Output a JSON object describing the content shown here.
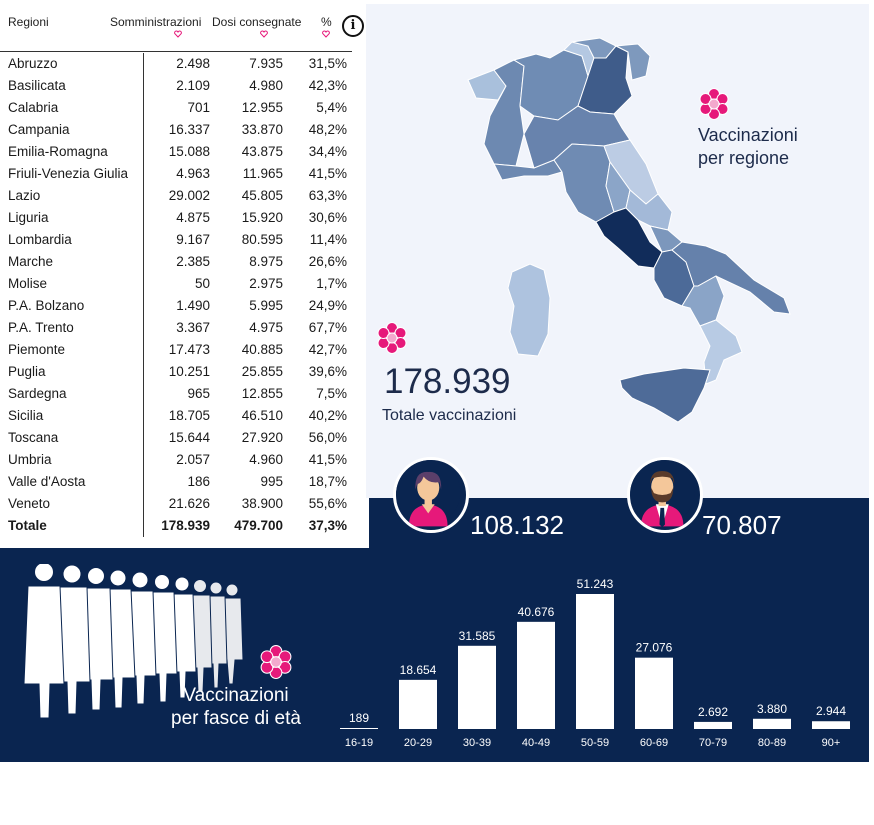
{
  "table": {
    "headers": {
      "region": "Regioni",
      "somm": "Somministrazioni",
      "dosi": "Dosi consegnate",
      "pct": "%"
    },
    "info_icon": "info-icon",
    "sort_icon": "heart-sort-icon",
    "rows": [
      {
        "name": "Abruzzo",
        "somm": "2.498",
        "dosi": "7.935",
        "pct": "31,5%"
      },
      {
        "name": "Basilicata",
        "somm": "2.109",
        "dosi": "4.980",
        "pct": "42,3%"
      },
      {
        "name": "Calabria",
        "somm": "701",
        "dosi": "12.955",
        "pct": "5,4%"
      },
      {
        "name": "Campania",
        "somm": "16.337",
        "dosi": "33.870",
        "pct": "48,2%"
      },
      {
        "name": "Emilia-Romagna",
        "somm": "15.088",
        "dosi": "43.875",
        "pct": "34,4%"
      },
      {
        "name": "Friuli-Venezia Giulia",
        "somm": "4.963",
        "dosi": "11.965",
        "pct": "41,5%"
      },
      {
        "name": "Lazio",
        "somm": "29.002",
        "dosi": "45.805",
        "pct": "63,3%"
      },
      {
        "name": "Liguria",
        "somm": "4.875",
        "dosi": "15.920",
        "pct": "30,6%"
      },
      {
        "name": "Lombardia",
        "somm": "9.167",
        "dosi": "80.595",
        "pct": "11,4%"
      },
      {
        "name": "Marche",
        "somm": "2.385",
        "dosi": "8.975",
        "pct": "26,6%"
      },
      {
        "name": "Molise",
        "somm": "50",
        "dosi": "2.975",
        "pct": "1,7%"
      },
      {
        "name": "P.A. Bolzano",
        "somm": "1.490",
        "dosi": "5.995",
        "pct": "24,9%"
      },
      {
        "name": "P.A. Trento",
        "somm": "3.367",
        "dosi": "4.975",
        "pct": "67,7%"
      },
      {
        "name": "Piemonte",
        "somm": "17.473",
        "dosi": "40.885",
        "pct": "42,7%"
      },
      {
        "name": "Puglia",
        "somm": "10.251",
        "dosi": "25.855",
        "pct": "39,6%"
      },
      {
        "name": "Sardegna",
        "somm": "965",
        "dosi": "12.855",
        "pct": "7,5%"
      },
      {
        "name": "Sicilia",
        "somm": "18.705",
        "dosi": "46.510",
        "pct": "40,2%"
      },
      {
        "name": "Toscana",
        "somm": "15.644",
        "dosi": "27.920",
        "pct": "56,0%"
      },
      {
        "name": "Umbria",
        "somm": "2.057",
        "dosi": "4.960",
        "pct": "41,5%"
      },
      {
        "name": "Valle d'Aosta",
        "somm": "186",
        "dosi": "995",
        "pct": "18,7%"
      },
      {
        "name": "Veneto",
        "somm": "21.626",
        "dosi": "38.900",
        "pct": "55,6%"
      }
    ],
    "total": {
      "name": "Totale",
      "somm": "178.939",
      "dosi": "479.700",
      "pct": "37,3%"
    }
  },
  "map_section": {
    "title_line1": "Vaccinazioni",
    "title_line2": "per regione",
    "icon": "flower-icon"
  },
  "totals": {
    "value": "178.939",
    "caption": "Totale vaccinazioni"
  },
  "gender": {
    "female": {
      "icon": "woman-avatar-icon",
      "value": "108.132"
    },
    "male": {
      "icon": "man-avatar-icon",
      "value": "70.807"
    }
  },
  "age_section": {
    "title_line1": "Vaccinazioni",
    "title_line2": "per fasce di età",
    "icon": "people-crowd-icon"
  },
  "colors": {
    "navy": "#0a2550",
    "light_panel": "#f1f4fb",
    "flower_pink": "#e6197a",
    "map_darkest": "#0f2a55"
  },
  "chart_data": {
    "type": "bar",
    "categories": [
      "16-19",
      "20-29",
      "30-39",
      "40-49",
      "50-59",
      "60-69",
      "70-79",
      "80-89",
      "90+"
    ],
    "values": [
      189,
      18654,
      31585,
      40676,
      51243,
      27076,
      2692,
      3880,
      2944
    ],
    "value_labels": [
      "189",
      "18.654",
      "31.585",
      "40.676",
      "51.243",
      "27.076",
      "2.692",
      "3.880",
      "2.944"
    ],
    "title": "",
    "xlabel": "",
    "ylabel": "",
    "ylim": [
      0,
      51243
    ],
    "grid": false
  }
}
